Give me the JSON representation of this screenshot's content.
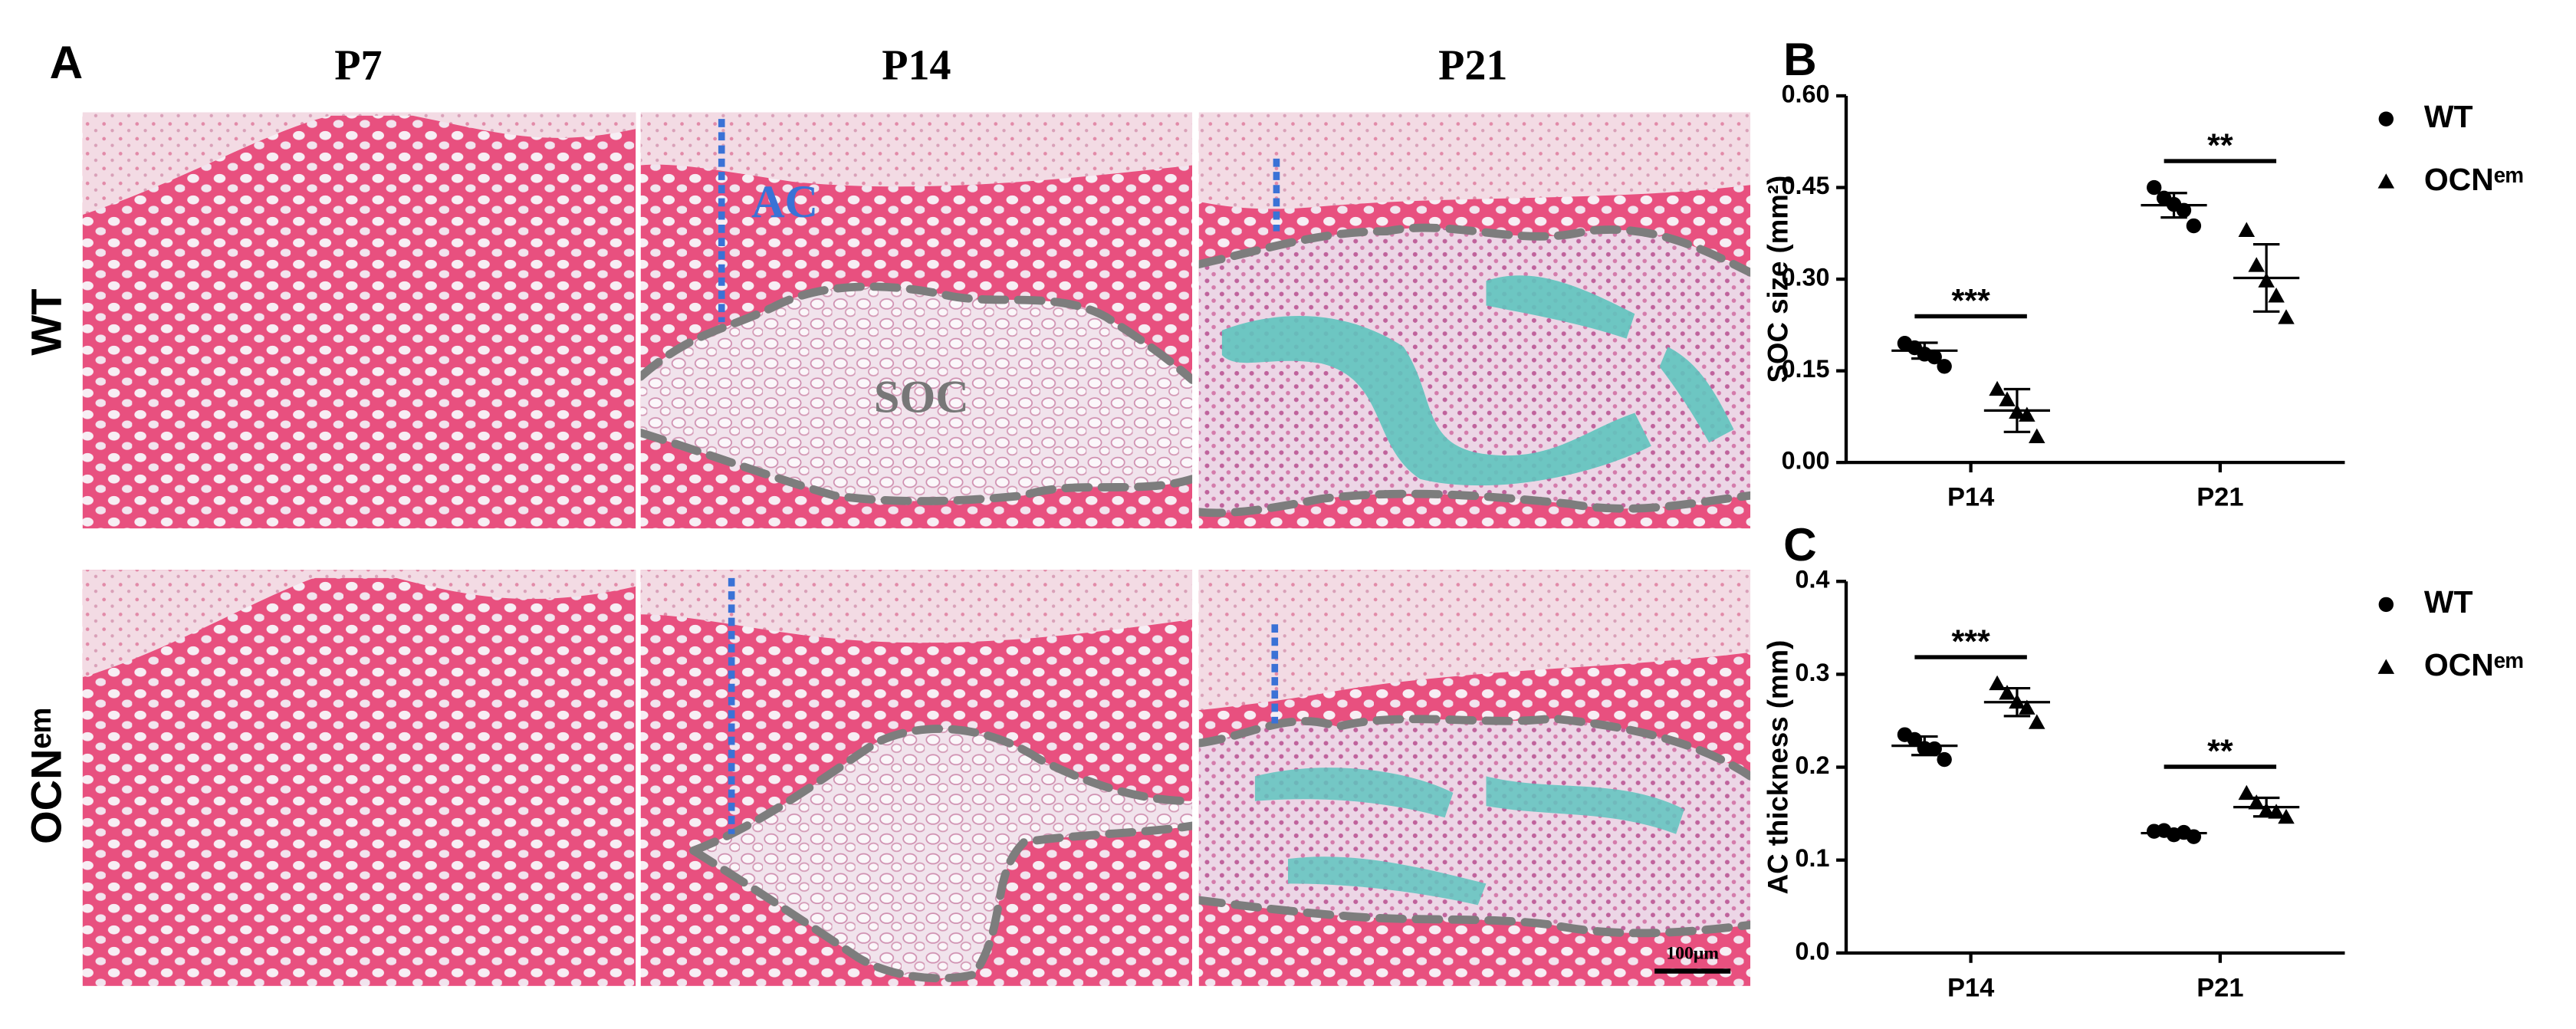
{
  "panel_a": {
    "label": "A",
    "columns": [
      "P7",
      "P14",
      "P21"
    ],
    "rows": [
      "WT",
      "OCNᵉᵐ"
    ],
    "ac_label": "AC",
    "soc_label": "SOC",
    "scale_bar": "100μm"
  },
  "chart_data": [
    {
      "type": "dotplot",
      "panel_label": "B",
      "y_label": "SOC size (mm²)",
      "categories": [
        "P14",
        "P21"
      ],
      "ylim": [
        0,
        0.6
      ],
      "yticks": [
        {
          "value": 0,
          "label": "0.00"
        },
        0.15,
        {
          "value": 0.3,
          "label": "0.30"
        },
        0.45,
        {
          "value": 0.6,
          "label": "0.60"
        }
      ],
      "series": [
        {
          "name": "WT",
          "color": "#000000",
          "marker": "circle",
          "values": [
            [
              0.195,
              0.185,
              0.18,
              0.17,
              0.16
            ],
            [
              0.45,
              0.43,
              0.425,
              0.41,
              0.39
            ]
          ],
          "mean": [
            0.183,
            0.421
          ],
          "sd": [
            0.013,
            0.02
          ]
        },
        {
          "name": "OCNᵉᵐ",
          "color": "#000000",
          "marker": "triangle",
          "values": [
            [
              0.12,
              0.1,
              0.085,
              0.075,
              0.045
            ],
            [
              0.38,
              0.32,
              0.3,
              0.27,
              0.24
            ]
          ],
          "mean": [
            0.085,
            0.302
          ],
          "sd": [
            0.035,
            0.055
          ]
        }
      ],
      "significance": [
        "***",
        "**"
      ]
    },
    {
      "type": "dotplot",
      "panel_label": "C",
      "y_label": "AC thickness (mm)",
      "categories": [
        "P14",
        "P21"
      ],
      "ylim": [
        0,
        0.4
      ],
      "yticks": [
        {
          "value": 0,
          "label": "0.0"
        },
        0.1,
        0.2,
        0.3,
        0.4
      ],
      "series": [
        {
          "name": "WT",
          "color": "#000000",
          "marker": "circle",
          "values": [
            [
              0.235,
              0.228,
              0.222,
              0.218,
              0.21
            ],
            [
              0.131,
              0.13,
              0.129,
              0.128,
              0.127
            ]
          ],
          "mean": [
            0.223,
            0.129
          ],
          "sd": [
            0.01,
            0.002
          ]
        },
        {
          "name": "OCNᵉᵐ",
          "color": "#000000",
          "marker": "triangle",
          "values": [
            [
              0.29,
              0.278,
              0.272,
              0.262,
              0.25
            ],
            [
              0.172,
              0.16,
              0.155,
              0.15,
              0.148
            ]
          ],
          "mean": [
            0.27,
            0.157
          ],
          "sd": [
            0.015,
            0.01
          ]
        }
      ],
      "significance": [
        "***",
        "**"
      ]
    }
  ]
}
